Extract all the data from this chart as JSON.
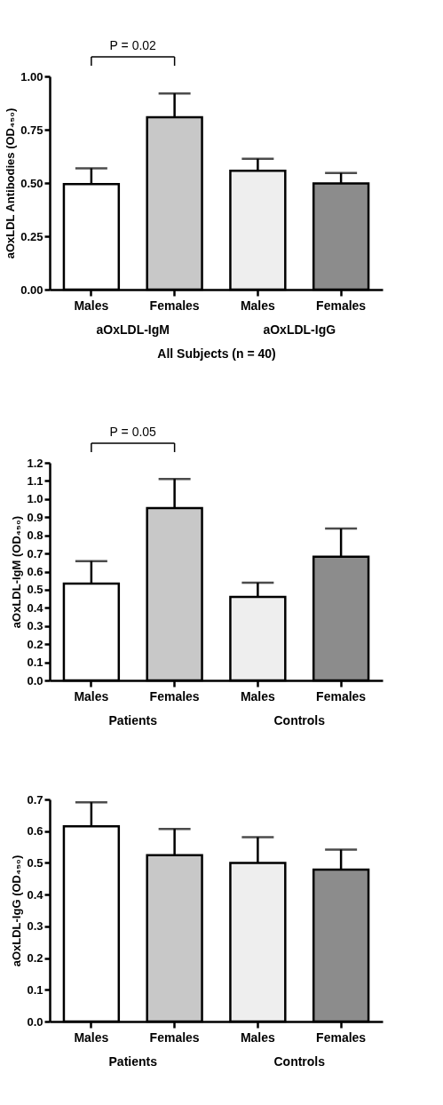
{
  "chart_data": [
    {
      "type": "bar",
      "xlabel": "All Subjects (n = 40)",
      "ylabel": "aOxLDL Antibodies (OD₄₅₀)",
      "categories": [
        "Males",
        "Females",
        "Males",
        "Females"
      ],
      "values": [
        0.495,
        0.808,
        0.557,
        0.498
      ],
      "errors": [
        [
          0.495,
          0.569
        ],
        [
          0.808,
          0.92
        ],
        [
          0.557,
          0.614
        ],
        [
          0.498,
          0.547
        ]
      ],
      "colors": [
        "#ffffff",
        "#c8c8c8",
        "#eeeeee",
        "#8c8c8c"
      ],
      "ylim": [
        0,
        1
      ],
      "yticks": [
        {
          "value": 0,
          "label": "0.00"
        },
        {
          "value": 0.25,
          "label": "0.25"
        },
        {
          "value": 0.5,
          "label": "0.50"
        },
        {
          "value": 0.75,
          "label": "0.75"
        },
        {
          "value": 1,
          "label": "1.00"
        }
      ],
      "annotations": [
        "P = 0.02",
        "aOxLDL-IgM",
        "aOxLDL-IgG"
      ],
      "grid": false
    },
    {
      "type": "bar",
      "ylabel": "aOxLDL-IgM (OD₄₅₀)",
      "categories": [
        "Males",
        "Females",
        "Males",
        "Females"
      ],
      "values": [
        0.534,
        0.95,
        0.46,
        0.682
      ],
      "errors": [
        [
          0.534,
          0.658
        ],
        [
          0.95,
          1.111
        ],
        [
          0.46,
          0.539
        ],
        [
          0.682,
          0.837
        ]
      ],
      "colors": [
        "#ffffff",
        "#c8c8c8",
        "#eeeeee",
        "#8c8c8c"
      ],
      "ylim": [
        0,
        1.2
      ],
      "yticks": [
        {
          "value": 0,
          "label": "0.0"
        },
        {
          "value": 0.1,
          "label": "0.1"
        },
        {
          "value": 0.2,
          "label": "0.2"
        },
        {
          "value": 0.3,
          "label": "0.3"
        },
        {
          "value": 0.4,
          "label": "0.4"
        },
        {
          "value": 0.5,
          "label": "0.5"
        },
        {
          "value": 0.6,
          "label": "0.6"
        },
        {
          "value": 0.7,
          "label": "0.7"
        },
        {
          "value": 0.8,
          "label": "0.8"
        },
        {
          "value": 0.9,
          "label": "0.9"
        },
        {
          "value": 1,
          "label": "1.0"
        },
        {
          "value": 1.1,
          "label": "1.1"
        },
        {
          "value": 1.2,
          "label": "1.2"
        }
      ],
      "annotations": [
        "P = 0.05",
        "Patients",
        "Controls"
      ],
      "grid": false
    },
    {
      "type": "bar",
      "ylabel": "aOxLDL-IgG (OD₄₅₀)",
      "categories": [
        "Males",
        "Females",
        "Males",
        "Females"
      ],
      "values": [
        0.615,
        0.524,
        0.5,
        0.479
      ],
      "errors": [
        [
          0.615,
          0.691
        ],
        [
          0.524,
          0.607
        ],
        [
          0.5,
          0.581
        ],
        [
          0.479,
          0.542
        ]
      ],
      "colors": [
        "#ffffff",
        "#c8c8c8",
        "#eeeeee",
        "#8c8c8c"
      ],
      "ylim": [
        0,
        0.7
      ],
      "yticks": [
        {
          "value": 0,
          "label": "0.0"
        },
        {
          "value": 0.1,
          "label": "0.1"
        },
        {
          "value": 0.2,
          "label": "0.2"
        },
        {
          "value": 0.3,
          "label": "0.3"
        },
        {
          "value": 0.4,
          "label": "0.4"
        },
        {
          "value": 0.5,
          "label": "0.5"
        },
        {
          "value": 0.6,
          "label": "0.6"
        },
        {
          "value": 0.7,
          "label": "0.7"
        }
      ],
      "annotations": [
        "Patients",
        "Controls"
      ],
      "grid": false
    }
  ]
}
